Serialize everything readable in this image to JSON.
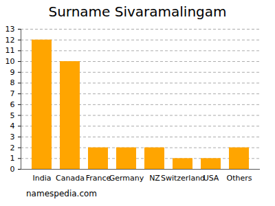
{
  "chart_data": {
    "type": "bar",
    "title": "Surname Sivaramalingam",
    "categories": [
      "India",
      "Canada",
      "France",
      "Germany",
      "NZ",
      "Switzerland",
      "USA",
      "Others"
    ],
    "values": [
      12,
      10,
      2,
      2,
      2,
      1,
      1,
      2
    ],
    "color": "#ffa500",
    "ylim": [
      0,
      13
    ],
    "yticks": [
      0,
      1,
      2,
      3,
      4,
      5,
      6,
      7,
      8,
      9,
      10,
      11,
      12,
      13
    ],
    "grid": true,
    "caption": "namespedia.com"
  }
}
